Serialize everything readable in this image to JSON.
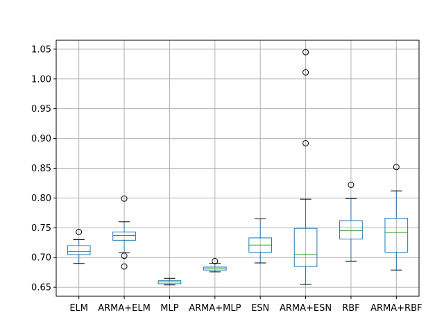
{
  "chart_data": {
    "type": "box",
    "title": "",
    "xlabel": "",
    "ylabel": "",
    "ylim": [
      0.635,
      1.065
    ],
    "yticks": [
      0.65,
      0.7,
      0.75,
      0.8,
      0.85,
      0.9,
      0.95,
      1.0,
      1.05
    ],
    "ytick_labels": [
      "0.65",
      "0.70",
      "0.75",
      "0.80",
      "0.85",
      "0.90",
      "0.95",
      "1.00",
      "1.05"
    ],
    "grid": true,
    "categories": [
      "ELM",
      "ARMA+ELM",
      "MLP",
      "ARMA+MLP",
      "ESN",
      "ARMA+ESN",
      "RBF",
      "ARMA+RBF"
    ],
    "boxes": [
      {
        "whisker_low": 0.69,
        "q1": 0.705,
        "median": 0.71,
        "q3": 0.72,
        "whisker_high": 0.73,
        "outliers": [
          0.743
        ]
      },
      {
        "whisker_low": 0.708,
        "q1": 0.729,
        "median": 0.737,
        "q3": 0.743,
        "whisker_high": 0.76,
        "outliers": [
          0.799,
          0.703,
          0.685
        ]
      },
      {
        "whisker_low": 0.654,
        "q1": 0.656,
        "median": 0.659,
        "q3": 0.661,
        "whisker_high": 0.665,
        "outliers": []
      },
      {
        "whisker_low": 0.676,
        "q1": 0.679,
        "median": 0.682,
        "q3": 0.684,
        "whisker_high": 0.69,
        "outliers": [
          0.694
        ]
      },
      {
        "whisker_low": 0.691,
        "q1": 0.709,
        "median": 0.721,
        "q3": 0.733,
        "whisker_high": 0.765,
        "outliers": []
      },
      {
        "whisker_low": 0.655,
        "q1": 0.685,
        "median": 0.705,
        "q3": 0.749,
        "whisker_high": 0.798,
        "outliers": [
          1.045,
          1.011,
          0.892
        ]
      },
      {
        "whisker_low": 0.694,
        "q1": 0.731,
        "median": 0.745,
        "q3": 0.762,
        "whisker_high": 0.799,
        "outliers": [
          0.822
        ]
      },
      {
        "whisker_low": 0.679,
        "q1": 0.709,
        "median": 0.742,
        "q3": 0.766,
        "whisker_high": 0.812,
        "outliers": [
          0.852
        ]
      }
    ],
    "colors": {
      "box": "#1f77b4",
      "median": "#2ca02c",
      "grid": "#b0b0b0",
      "axis": "#000000",
      "outlier": "#000000"
    }
  }
}
